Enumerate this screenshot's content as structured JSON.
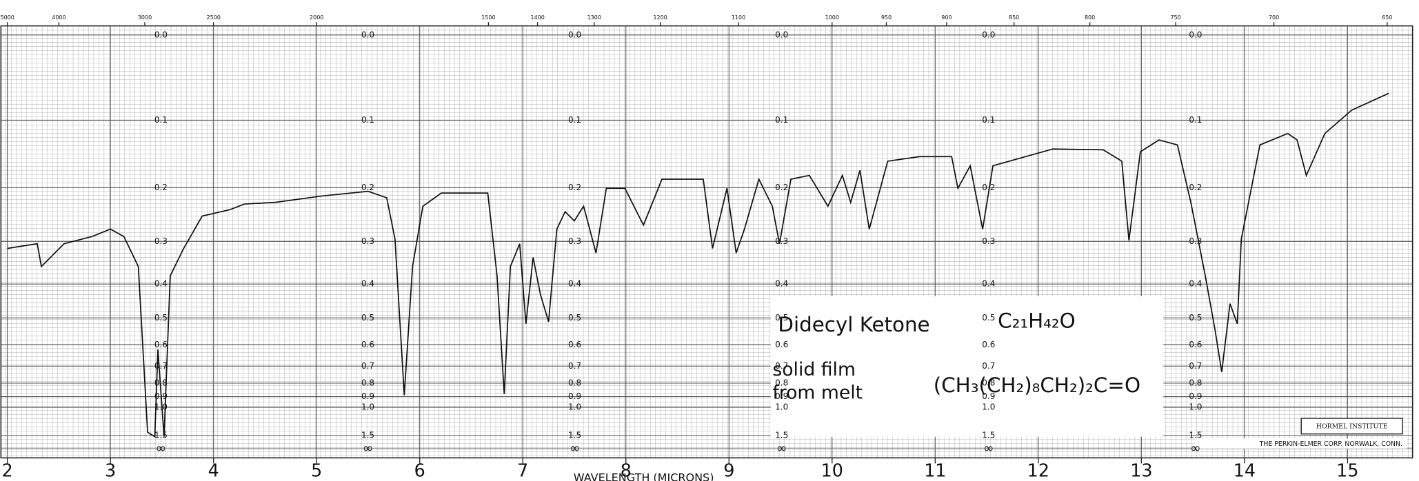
{
  "chart_data": {
    "type": "line",
    "yscale": "absorbance",
    "xlabel": "WAVELENGTH (MICRONS)",
    "xlim": [
      2,
      15.5
    ],
    "xticks": [
      2,
      3,
      4,
      5,
      6,
      7,
      8,
      9,
      10,
      11,
      12,
      13,
      14,
      15
    ],
    "x2scale": "wavenumber",
    "x2ticks": [
      5000,
      4000,
      3000,
      2500,
      2000,
      1500,
      1400,
      1300,
      1200,
      1100,
      1000,
      950,
      900,
      850,
      800,
      750,
      700,
      650
    ],
    "yticks": [
      {
        "value": 0,
        "label": "0.0"
      },
      0.1,
      0.2,
      0.3,
      0.4,
      0.5,
      0.6,
      0.7,
      0.8,
      0.9,
      {
        "value": 1,
        "label": "1.0"
      },
      1.5,
      {
        "value": null,
        "label": "∞"
      }
    ],
    "grid": true,
    "color": "#111111",
    "x": [
      2.0,
      2.29,
      2.33,
      2.55,
      2.82,
      3.0,
      3.13,
      3.27,
      3.36,
      3.43,
      3.46,
      3.52,
      3.58,
      3.71,
      3.89,
      4.16,
      4.3,
      4.6,
      5.05,
      5.5,
      5.68,
      5.76,
      5.85,
      5.93,
      6.03,
      6.21,
      6.66,
      6.75,
      6.82,
      6.88,
      6.97,
      7.03,
      7.1,
      7.17,
      7.25,
      7.33,
      7.41,
      7.5,
      7.59,
      7.71,
      7.81,
      7.99,
      8.17,
      8.35,
      8.75,
      8.84,
      8.98,
      9.07,
      9.15,
      9.29,
      9.42,
      9.49,
      9.6,
      9.78,
      9.96,
      10.1,
      10.18,
      10.27,
      10.36,
      10.54,
      10.85,
      11.16,
      11.22,
      11.34,
      11.46,
      11.56,
      12.14,
      12.63,
      12.81,
      12.88,
      12.99,
      13.17,
      13.35,
      13.48,
      13.62,
      13.71,
      13.78,
      13.86,
      13.93,
      13.97,
      14.15,
      14.42,
      14.51,
      14.6,
      14.78,
      15.04,
      15.4
    ],
    "values": [
      0.315,
      0.305,
      0.356,
      0.305,
      0.29,
      0.275,
      0.29,
      0.356,
      1.4,
      1.54,
      0.62,
      1.54,
      0.379,
      0.315,
      0.25,
      0.238,
      0.228,
      0.225,
      0.214,
      0.206,
      0.217,
      0.295,
      0.889,
      0.356,
      0.232,
      0.209,
      0.209,
      0.379,
      0.88,
      0.356,
      0.305,
      0.52,
      0.335,
      0.428,
      0.513,
      0.275,
      0.242,
      0.259,
      0.232,
      0.325,
      0.201,
      0.201,
      0.267,
      0.186,
      0.186,
      0.315,
      0.201,
      0.325,
      0.275,
      0.186,
      0.232,
      0.305,
      0.186,
      0.18,
      0.232,
      0.18,
      0.225,
      0.172,
      0.275,
      0.158,
      0.151,
      0.151,
      0.201,
      0.165,
      0.275,
      0.165,
      0.14,
      0.141,
      0.158,
      0.298,
      0.144,
      0.127,
      0.134,
      0.225,
      0.379,
      0.532,
      0.731,
      0.455,
      0.52,
      0.295,
      0.134,
      0.118,
      0.127,
      0.18,
      0.118,
      0.087,
      0.066
    ],
    "annotations": {
      "compound": "Didecyl Ketone",
      "formula": "C₂₁H₄₂O",
      "sample_line1": "solid film",
      "sample_line2": "from melt",
      "structure": "(CH₃(CH₂)₈CH₂)₂C=O",
      "institute": "HORMEL INSTITUTE",
      "maker": "THE PERKIN-ELMER CORP. NORWALK, CONN."
    }
  }
}
